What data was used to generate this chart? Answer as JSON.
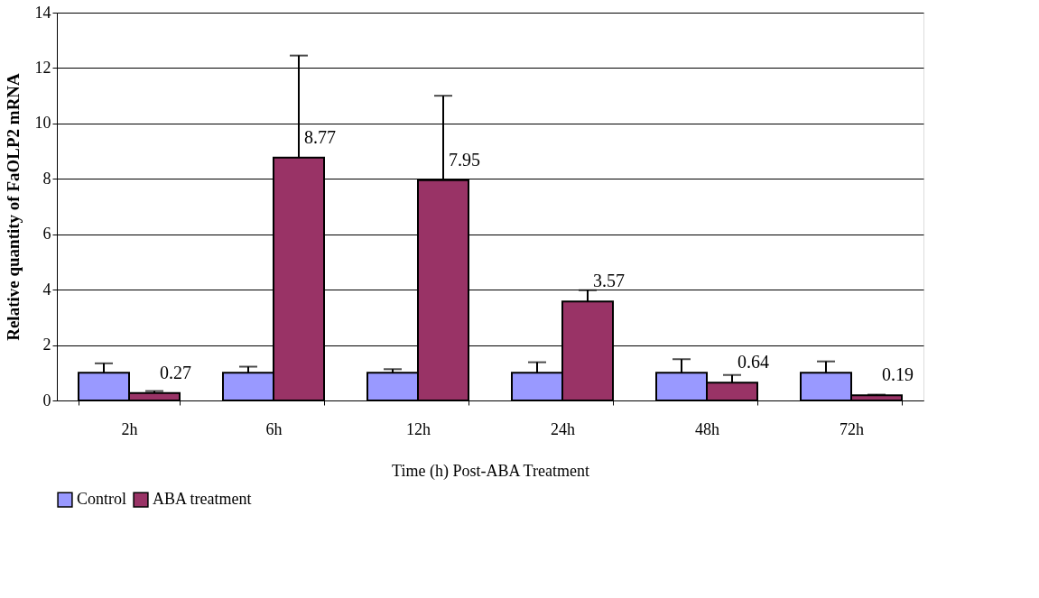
{
  "chart_data": {
    "type": "bar",
    "xlabel": "Time (h) Post-ABA Treatment",
    "ylabel": "Relative quantity of FaOLP2 mRNA",
    "categories": [
      "2h",
      "6h",
      "12h",
      "24h",
      "48h",
      "72h"
    ],
    "series": [
      {
        "name": "Control",
        "color": "#9999ff",
        "values": [
          1,
          1,
          1,
          1,
          1,
          1
        ],
        "errors": [
          [
            1,
            1.34
          ],
          [
            1,
            1.22
          ],
          [
            1,
            1.13
          ],
          [
            1,
            1.38
          ],
          [
            1,
            1.49
          ],
          [
            1,
            1.41
          ]
        ]
      },
      {
        "name": "ABA treatment",
        "color": "#993366",
        "values": [
          0.27,
          8.77,
          7.95,
          3.57,
          0.64,
          0.19
        ],
        "errors": [
          [
            0.27,
            0.34
          ],
          [
            8.77,
            12.45
          ],
          [
            7.95,
            11.0
          ],
          [
            3.57,
            3.98
          ],
          [
            0.64,
            0.92
          ],
          [
            0.19,
            0.21
          ]
        ],
        "value_labels": [
          "0.27",
          "8.77",
          "7.95",
          "3.57",
          "0.64",
          "0.19"
        ]
      }
    ],
    "ylim": [
      0,
      14
    ],
    "yticks": [
      0,
      2,
      4,
      6,
      8,
      10,
      12,
      14
    ],
    "grid": "y",
    "legend": "bottom"
  }
}
